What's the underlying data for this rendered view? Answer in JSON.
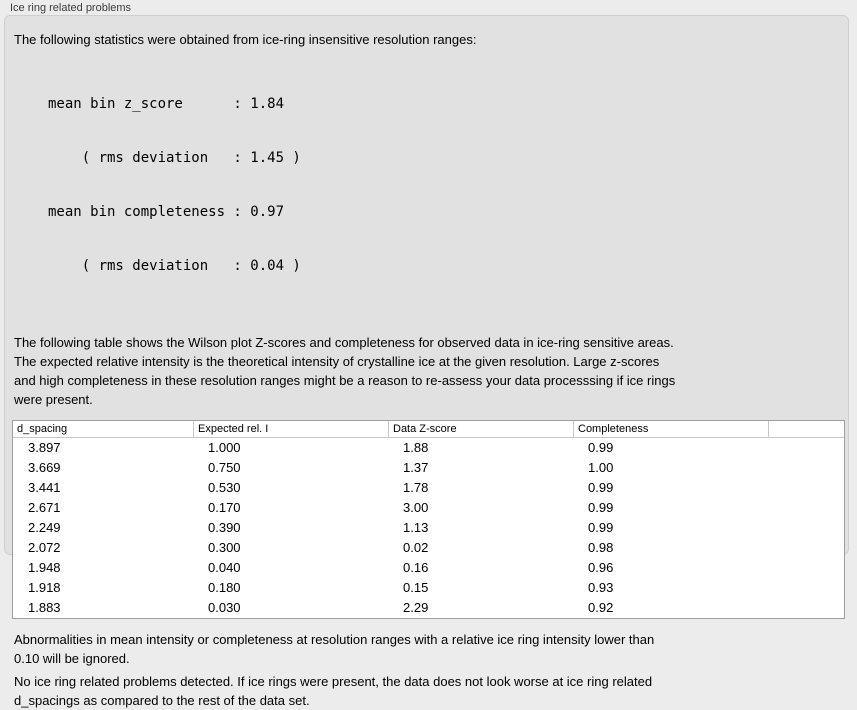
{
  "window": {
    "group_label": "Ice ring related problems"
  },
  "panel": {
    "intro": "The following statistics were obtained from ice-ring insensitive resolution ranges:",
    "stats_lines": [
      "mean bin z_score      : 1.84",
      "    ( rms deviation   : 1.45 )",
      "mean bin completeness : 0.97",
      "    ( rms deviation   : 0.04 )"
    ],
    "description_lines": [
      "The following table shows the Wilson plot Z-scores and completeness for observed data in ice-ring sensitive areas.",
      "The expected relative intensity is the theoretical intensity of crystalline ice at the given resolution. Large z-scores",
      "and high completeness in these resolution ranges might be a reason to re-assess your data processsing if ice rings",
      "were present."
    ],
    "note1_lines": [
      "Abnormalities in mean intensity or completeness at resolution ranges with a relative ice ring intensity lower than",
      "0.10 will be ignored."
    ],
    "note2_lines": [
      "No ice ring related problems detected. If ice rings were present, the data does not look worse at ice ring related",
      "d_spacings as compared to the rest of the data set."
    ]
  },
  "table": {
    "columns": [
      "d_spacing",
      "Expected rel. I",
      "Data Z-score",
      "Completeness",
      ""
    ],
    "rows": [
      [
        "3.897",
        "1.000",
        "1.88",
        "0.99"
      ],
      [
        "3.669",
        "0.750",
        "1.37",
        "1.00"
      ],
      [
        "3.441",
        "0.530",
        "1.78",
        "0.99"
      ],
      [
        "2.671",
        "0.170",
        "3.00",
        "0.99"
      ],
      [
        "2.249",
        "0.390",
        "1.13",
        "0.99"
      ],
      [
        "2.072",
        "0.300",
        "0.02",
        "0.98"
      ],
      [
        "1.948",
        "0.040",
        "0.16",
        "0.96"
      ],
      [
        "1.918",
        "0.180",
        "0.15",
        "0.93"
      ],
      [
        "1.883",
        "0.030",
        "2.29",
        "0.92"
      ]
    ]
  },
  "colors": {
    "window_background": "#ececec",
    "panel_background": "#e1e1e1",
    "table_background": "#ffffff",
    "table_border": "#9e9e9e"
  }
}
